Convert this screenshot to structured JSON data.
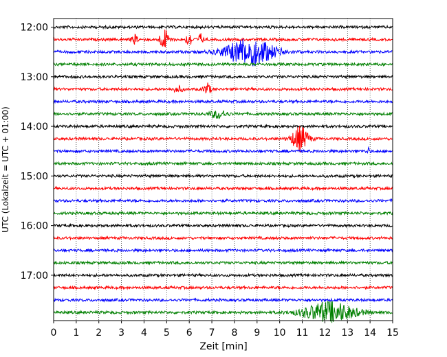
{
  "chart_data": {
    "type": "line",
    "title": "",
    "xlabel": "Zeit  [min]",
    "ylabel": "UTC (Lokalzeit = UTC + 01:00)",
    "xlim": [
      0,
      15
    ],
    "x_ticks": [
      0,
      1,
      2,
      3,
      4,
      5,
      6,
      7,
      8,
      9,
      10,
      11,
      12,
      13,
      14,
      15
    ],
    "y_tick_labels": [
      "12:00",
      "13:00",
      "14:00",
      "15:00",
      "16:00",
      "17:00"
    ],
    "y_tick_rows": [
      0,
      4,
      8,
      12,
      16,
      20
    ],
    "trace_interval_minutes": 15,
    "trace_colors": [
      "#000000",
      "#ff0000",
      "#0000ff",
      "#008000"
    ],
    "grid": "vertical dotted",
    "traces": [
      {
        "start": "12:00",
        "color": "#000000"
      },
      {
        "start": "12:15",
        "color": "#ff0000",
        "events": [
          [
            3.6,
            0.2,
            6
          ],
          [
            4.9,
            0.3,
            14
          ],
          [
            6.0,
            0.2,
            10
          ],
          [
            6.5,
            0.15,
            8
          ]
        ]
      },
      {
        "start": "12:30",
        "color": "#0000ff",
        "events": [
          [
            8.7,
            1.5,
            20
          ]
        ]
      },
      {
        "start": "12:45",
        "color": "#008000"
      },
      {
        "start": "13:00",
        "color": "#000000"
      },
      {
        "start": "13:15",
        "color": "#ff0000",
        "events": [
          [
            5.5,
            0.3,
            4
          ],
          [
            6.8,
            0.2,
            9
          ]
        ]
      },
      {
        "start": "13:30",
        "color": "#0000ff"
      },
      {
        "start": "13:45",
        "color": "#008000",
        "events": [
          [
            7.3,
            0.5,
            6
          ]
        ]
      },
      {
        "start": "14:00",
        "color": "#000000"
      },
      {
        "start": "14:15",
        "color": "#ff0000",
        "events": [
          [
            10.9,
            0.5,
            18
          ]
        ]
      },
      {
        "start": "14:30",
        "color": "#0000ff",
        "events": [
          [
            13.9,
            0.1,
            5
          ]
        ]
      },
      {
        "start": "14:45",
        "color": "#008000"
      },
      {
        "start": "15:00",
        "color": "#000000"
      },
      {
        "start": "15:15",
        "color": "#ff0000"
      },
      {
        "start": "15:30",
        "color": "#0000ff"
      },
      {
        "start": "15:45",
        "color": "#008000"
      },
      {
        "start": "16:00",
        "color": "#000000"
      },
      {
        "start": "16:15",
        "color": "#ff0000"
      },
      {
        "start": "16:30",
        "color": "#0000ff"
      },
      {
        "start": "16:45",
        "color": "#008000"
      },
      {
        "start": "17:00",
        "color": "#000000"
      },
      {
        "start": "17:15",
        "color": "#ff0000"
      },
      {
        "start": "17:30",
        "color": "#0000ff"
      },
      {
        "start": "17:45",
        "color": "#008000",
        "events": [
          [
            12.2,
            1.6,
            15
          ]
        ]
      }
    ]
  }
}
